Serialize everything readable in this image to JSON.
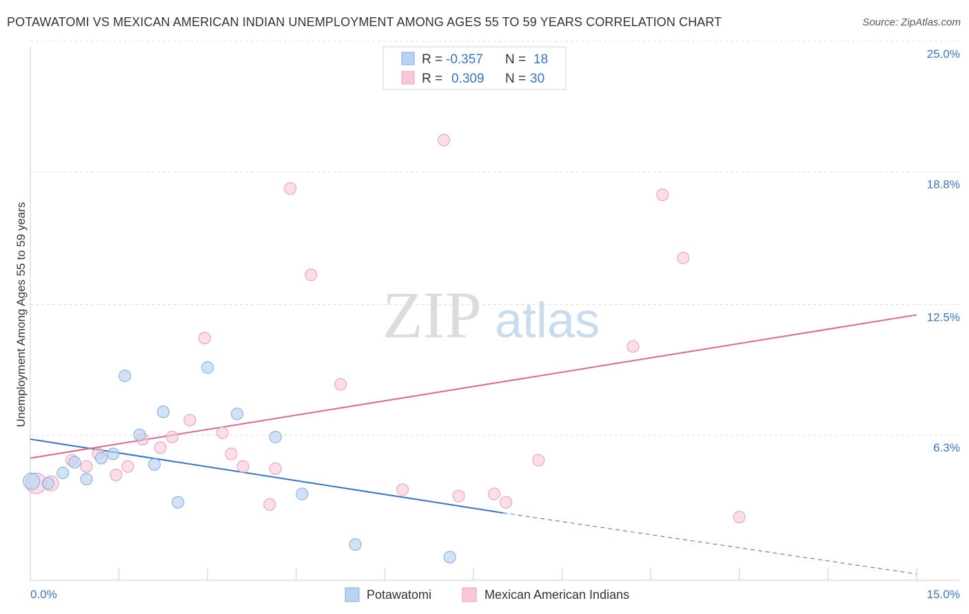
{
  "title": "POTAWATOMI VS MEXICAN AMERICAN INDIAN UNEMPLOYMENT AMONG AGES 55 TO 59 YEARS CORRELATION CHART",
  "source": "Source: ZipAtlas.com",
  "watermark": {
    "zip": "ZIP",
    "atlas": "atlas"
  },
  "colors": {
    "potawatomi_fill": "#b8d3f3",
    "potawatomi_stroke": "#7fa9dc",
    "potawatomi_line": "#3373cc",
    "mexican_fill": "#f9c8d8",
    "mexican_stroke": "#eb9bb6",
    "mexican_line": "#e06590",
    "tick": "#3b73c4"
  },
  "legend": {
    "rows": [
      {
        "r_label": "R =",
        "r_value": "-0.357",
        "n_label": "N =",
        "n_value": "18"
      },
      {
        "r_label": "R =",
        "r_value": "0.309",
        "n_label": "N =",
        "n_value": "30"
      }
    ]
  },
  "chart_data": {
    "type": "scatter",
    "title": "POTAWATOMI VS MEXICAN AMERICAN INDIAN UNEMPLOYMENT AMONG AGES 55 TO 59 YEARS CORRELATION CHART",
    "xlabel": "",
    "ylabel": "Unemployment Among Ages 55 to 59 years",
    "xlim": [
      0,
      15
    ],
    "ylim": [
      0,
      25
    ],
    "x_tick_labels": [
      "0.0%",
      "15.0%"
    ],
    "y_ticks": [
      6.3,
      12.5,
      18.8,
      25.0
    ],
    "y_tick_labels": [
      "6.3%",
      "12.5%",
      "18.8%",
      "25.0%"
    ],
    "grid": true,
    "legend_position": "bottom-center",
    "series": [
      {
        "name": "Potawatomi",
        "r": -0.357,
        "n": 18,
        "points": [
          [
            0.02,
            4.7
          ],
          [
            0.3,
            4.6
          ],
          [
            0.55,
            5.1
          ],
          [
            0.75,
            5.6
          ],
          [
            0.95,
            4.8
          ],
          [
            1.2,
            5.8
          ],
          [
            1.4,
            6.0
          ],
          [
            1.6,
            9.7
          ],
          [
            1.85,
            6.9
          ],
          [
            2.1,
            5.5
          ],
          [
            2.25,
            8.0
          ],
          [
            2.5,
            3.7
          ],
          [
            3.0,
            10.1
          ],
          [
            3.5,
            7.9
          ],
          [
            4.15,
            6.8
          ],
          [
            4.6,
            4.1
          ],
          [
            5.5,
            1.7
          ],
          [
            7.1,
            1.1
          ]
        ],
        "trend": {
          "x0": 0,
          "y0": 6.7,
          "x1": 8.0,
          "y1": 3.2,
          "dash_to_x": 15.0,
          "dash_to_y": 0.3
        }
      },
      {
        "name": "Mexican American Indians",
        "r": 0.309,
        "n": 30,
        "points": [
          [
            0.1,
            4.6
          ],
          [
            0.35,
            4.6
          ],
          [
            0.7,
            5.7
          ],
          [
            0.95,
            5.4
          ],
          [
            1.15,
            6.0
          ],
          [
            1.45,
            5.0
          ],
          [
            1.65,
            5.4
          ],
          [
            1.9,
            6.7
          ],
          [
            2.2,
            6.3
          ],
          [
            2.4,
            6.8
          ],
          [
            2.7,
            7.6
          ],
          [
            2.95,
            11.5
          ],
          [
            3.25,
            7.0
          ],
          [
            3.4,
            6.0
          ],
          [
            3.6,
            5.4
          ],
          [
            4.05,
            3.6
          ],
          [
            4.15,
            5.3
          ],
          [
            4.4,
            18.6
          ],
          [
            4.75,
            14.5
          ],
          [
            5.25,
            9.3
          ],
          [
            6.3,
            4.3
          ],
          [
            7.0,
            20.9
          ],
          [
            7.25,
            4.0
          ],
          [
            7.85,
            4.1
          ],
          [
            8.05,
            3.7
          ],
          [
            8.6,
            5.7
          ],
          [
            10.2,
            11.1
          ],
          [
            10.7,
            18.3
          ],
          [
            11.05,
            15.3
          ],
          [
            12.0,
            3.0
          ]
        ],
        "trend": {
          "x0": 0,
          "y0": 5.8,
          "x1": 15.0,
          "y1": 12.6
        }
      }
    ]
  }
}
